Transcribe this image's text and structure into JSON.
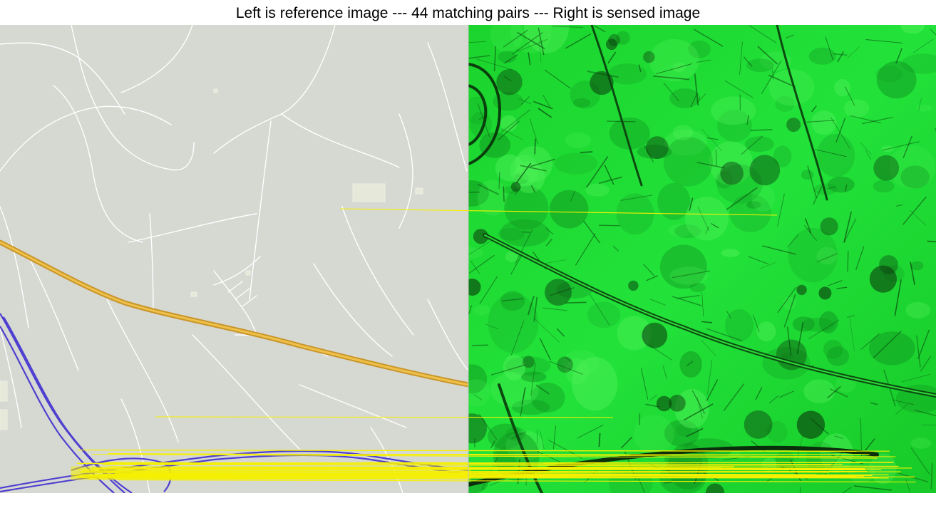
{
  "figure": {
    "title": "Left is reference image --- 44 matching pairs --- Right is sensed image"
  },
  "left_panel": {
    "kind": "reference-map",
    "background": "#d6d8d2",
    "road_color": "#ffffff",
    "highway_color": "#e6b133",
    "railway_color": "#4e3fd0",
    "building_color": "#e6e9d9"
  },
  "right_panel": {
    "kind": "sensed-image",
    "base_color": "#19d62e",
    "light_color": "#52f25a",
    "dark_color": "#0a5a12"
  },
  "match_line_color": "#f5f000"
}
